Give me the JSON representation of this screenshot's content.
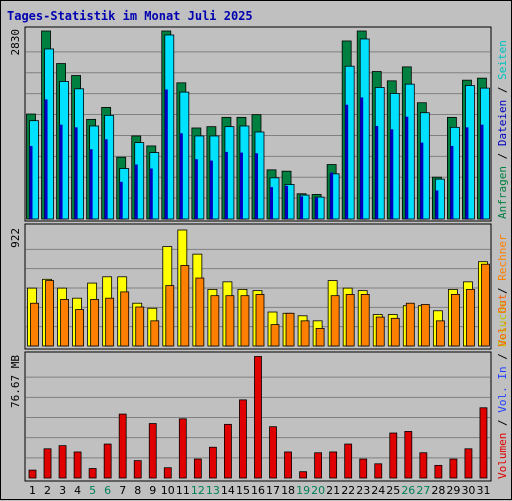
{
  "chart_data": [
    {
      "type": "bar",
      "title": "Tages-Statistik im Monat Juli 2025",
      "max_label": "2830",
      "ylim": [
        0,
        2830
      ],
      "legend_right": [
        "Anfragen",
        "Dateien",
        "Seiten"
      ],
      "categories": [
        "1",
        "2",
        "3",
        "4",
        "5",
        "6",
        "7",
        "8",
        "9",
        "10",
        "11",
        "12",
        "13",
        "14",
        "15",
        "16",
        "17",
        "18",
        "19",
        "20",
        "21",
        "22",
        "23",
        "24",
        "25",
        "26",
        "27",
        "28",
        "29",
        "30",
        "31"
      ],
      "weekend_days": [
        "5",
        "6",
        "12",
        "13",
        "19",
        "20",
        "26",
        "27"
      ],
      "series": [
        {
          "name": "Anfragen",
          "color": "#008040",
          "values": [
            1580,
            2830,
            2340,
            2160,
            1500,
            1680,
            930,
            1250,
            1100,
            2830,
            2050,
            1370,
            1390,
            1530,
            1530,
            1570,
            740,
            720,
            380,
            370,
            820,
            2680,
            2830,
            2220,
            2080,
            2290,
            1750,
            630,
            1530,
            2090,
            2120
          ]
        },
        {
          "name": "Dateien",
          "color": "#00e0ff",
          "values": [
            1480,
            2560,
            2070,
            1960,
            1400,
            1560,
            760,
            1150,
            1000,
            2770,
            1910,
            1250,
            1250,
            1390,
            1400,
            1310,
            620,
            520,
            360,
            330,
            680,
            2300,
            2710,
            1980,
            1890,
            2030,
            1600,
            600,
            1380,
            2010,
            1970
          ]
        },
        {
          "name": "Seiten",
          "color": "#0000c0",
          "values": [
            1100,
            1800,
            1420,
            1380,
            1050,
            1200,
            560,
            820,
            760,
            1950,
            1290,
            900,
            880,
            1010,
            1000,
            990,
            480,
            500,
            340,
            320,
            700,
            1720,
            1830,
            1400,
            1350,
            1540,
            1150,
            430,
            1100,
            1380,
            1420
          ]
        }
      ]
    },
    {
      "type": "bar",
      "max_label": "922",
      "ylim": [
        0,
        922
      ],
      "legend_right": [
        "Besuche",
        "Rechner"
      ],
      "categories": [
        "1",
        "2",
        "3",
        "4",
        "5",
        "6",
        "7",
        "8",
        "9",
        "10",
        "11",
        "12",
        "13",
        "14",
        "15",
        "16",
        "17",
        "18",
        "19",
        "20",
        "21",
        "22",
        "23",
        "24",
        "25",
        "26",
        "27",
        "28",
        "29",
        "30",
        "31"
      ],
      "series": [
        {
          "name": "Besuche",
          "color": "#ffff00",
          "values": [
            460,
            530,
            460,
            380,
            500,
            550,
            550,
            340,
            300,
            790,
            922,
            730,
            450,
            510,
            450,
            440,
            270,
            260,
            240,
            200,
            520,
            460,
            440,
            250,
            250,
            320,
            320,
            280,
            450,
            510,
            670
          ]
        },
        {
          "name": "Rechner",
          "color": "#ff8000",
          "values": [
            340,
            520,
            370,
            290,
            370,
            380,
            430,
            310,
            200,
            480,
            640,
            540,
            400,
            400,
            400,
            410,
            170,
            260,
            200,
            140,
            400,
            410,
            410,
            230,
            220,
            340,
            330,
            200,
            410,
            450,
            650
          ]
        }
      ]
    },
    {
      "type": "bar",
      "max_label": "76.67 MB",
      "unit": "MB",
      "ylim": [
        0,
        76.67
      ],
      "legend_right": [
        "Volumen",
        "Vol. In",
        "Vol. Out"
      ],
      "categories": [
        "1",
        "2",
        "3",
        "4",
        "5",
        "6",
        "7",
        "8",
        "9",
        "10",
        "11",
        "12",
        "13",
        "14",
        "15",
        "16",
        "17",
        "18",
        "19",
        "20",
        "21",
        "22",
        "23",
        "24",
        "25",
        "26",
        "27",
        "28",
        "29",
        "30",
        "31"
      ],
      "series": [
        {
          "name": "Volumen",
          "color": "#e00000",
          "values": [
            5,
            18.5,
            20.5,
            16.5,
            6,
            21.5,
            40.5,
            11,
            34.5,
            6.5,
            37.5,
            12,
            19.5,
            34,
            49.5,
            77,
            32.5,
            16.5,
            4,
            16,
            16.5,
            21.5,
            12,
            9,
            28.5,
            29.5,
            16,
            8,
            12,
            18.5,
            44.5
          ]
        }
      ]
    }
  ]
}
